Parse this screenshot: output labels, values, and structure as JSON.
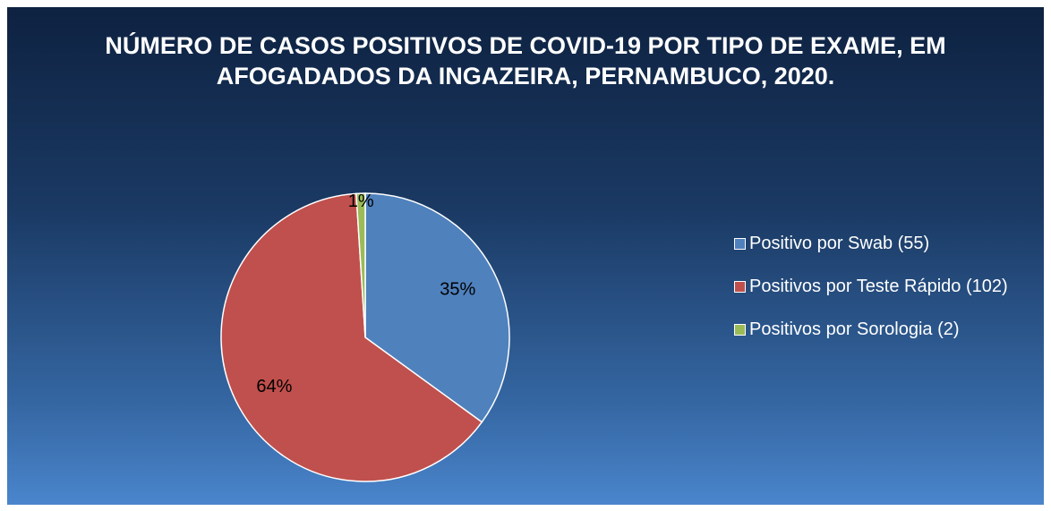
{
  "chart_data": {
    "type": "pie",
    "title": "NÚMERO DE CASOS POSITIVOS DE COVID-19 POR TIPO DE EXAME, EM AFOGADADOS DA INGAZEIRA, PERNAMBUCO, 2020.",
    "categories": [
      "Positivo por Swab (55)",
      "Positivos por Teste Rápido (102)",
      "Positivos por Sorologia (2)"
    ],
    "values": [
      35,
      64,
      1
    ],
    "value_labels": [
      "35%",
      "64%",
      "1%"
    ],
    "colors": [
      "#4f81bd",
      "#c0504d",
      "#9bbb59"
    ],
    "legend": "right"
  }
}
